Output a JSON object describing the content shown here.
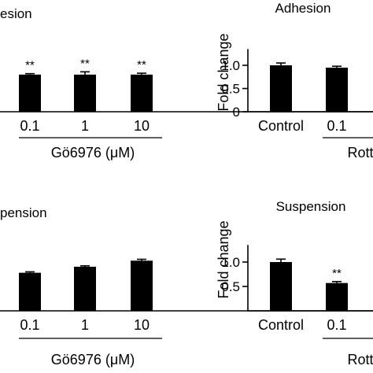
{
  "chart_data": [
    {
      "id": "tl",
      "type": "bar",
      "title": "esion",
      "ylabel": "",
      "categories": [
        "0.1",
        "1",
        "10"
      ],
      "values": [
        0.8,
        0.8,
        0.8
      ],
      "errors": [
        0.02,
        0.06,
        0.03
      ],
      "significance": [
        "**",
        "**",
        "**"
      ],
      "yticks": [],
      "ylim": [
        0,
        1.5
      ],
      "group_label": "Gö6976 (μM)"
    },
    {
      "id": "tr",
      "type": "bar",
      "title": "Adhesion",
      "ylabel": "Fold change",
      "categories": [
        "Control",
        "0.1"
      ],
      "values": [
        1.0,
        0.95
      ],
      "errors": [
        0.05,
        0.03
      ],
      "significance": [
        "",
        ""
      ],
      "yticks": [
        "0",
        "0.5",
        "1.0"
      ],
      "ylim": [
        0,
        1.5
      ],
      "group_label": "Rottl"
    },
    {
      "id": "bl",
      "type": "bar",
      "title": "pension",
      "ylabel": "",
      "categories": [
        "0.1",
        "1",
        "10"
      ],
      "values": [
        0.82,
        0.95,
        1.08
      ],
      "errors": [
        0.02,
        0.02,
        0.03
      ],
      "significance": [
        "",
        "",
        ""
      ],
      "yticks": [],
      "ylim": [
        0,
        1.5
      ],
      "group_label": "Gö6976 (μM)"
    },
    {
      "id": "br",
      "type": "bar",
      "title": "Suspension",
      "ylabel": "Fold change",
      "categories": [
        "Control",
        "0.1"
      ],
      "values": [
        1.0,
        0.57
      ],
      "errors": [
        0.06,
        0.03
      ],
      "significance": [
        "",
        "**"
      ],
      "yticks": [
        "0.5",
        "1.0"
      ],
      "ylim": [
        0,
        1.5
      ],
      "group_label": "Rottl"
    }
  ]
}
